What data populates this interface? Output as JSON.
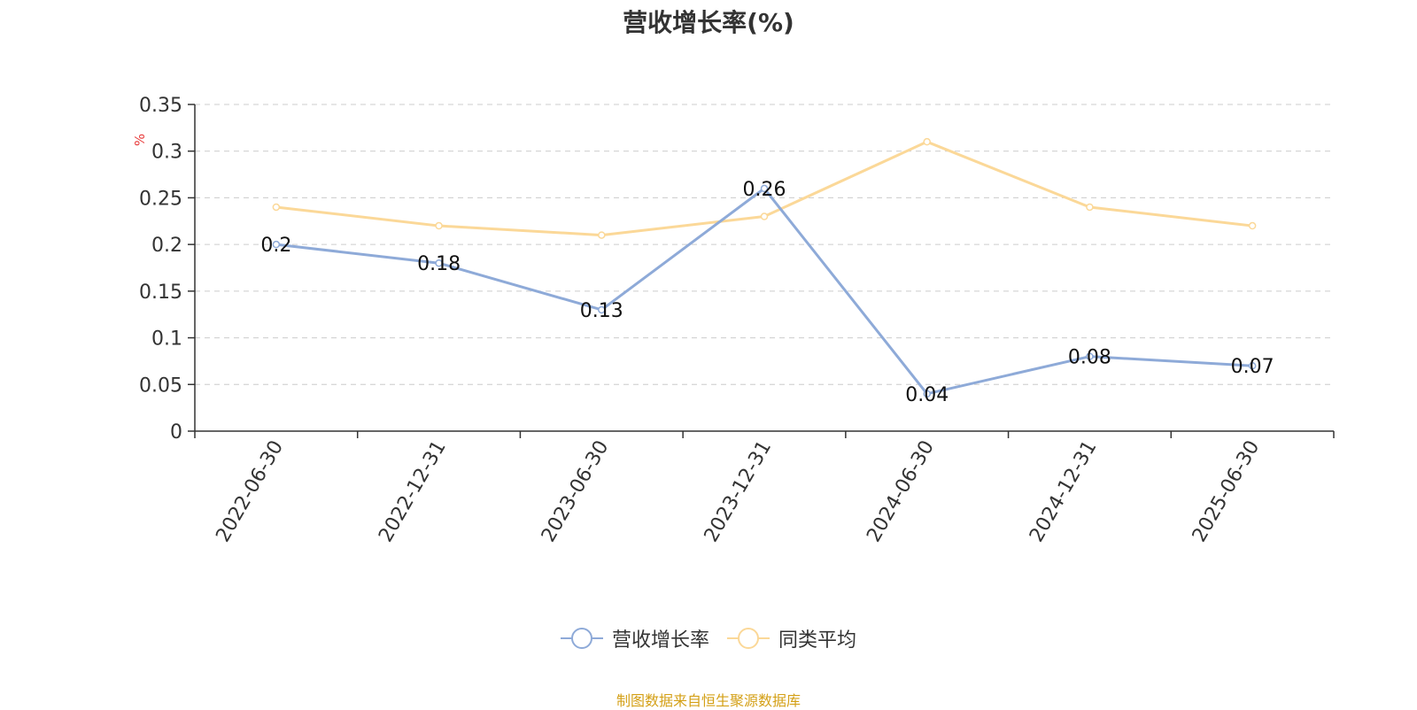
{
  "chart_data": {
    "type": "line",
    "title": "营收增长率(%)",
    "ylabel": "%",
    "xlabel": "",
    "categories": [
      "2022-06-30",
      "2022-12-31",
      "2023-06-30",
      "2023-12-31",
      "2024-06-30",
      "2024-12-31",
      "2025-06-30"
    ],
    "ylim": [
      0,
      0.35
    ],
    "yticks": [
      "0",
      "0.05",
      "0.1",
      "0.15",
      "0.2",
      "0.25",
      "0.3",
      "0.35"
    ],
    "grid": true,
    "legend_position": "bottom",
    "series": [
      {
        "name": "营收增长率",
        "color": "#8eaad8",
        "values": [
          0.2,
          0.18,
          0.13,
          0.26,
          0.04,
          0.08,
          0.07
        ],
        "labels": [
          "0.2",
          "0.18",
          "0.13",
          "0.26",
          "0.04",
          "0.08",
          "0.07"
        ]
      },
      {
        "name": "同类平均",
        "color": "#fbd898",
        "values": [
          0.24,
          0.22,
          0.21,
          0.23,
          0.31,
          0.24,
          0.22
        ]
      }
    ]
  },
  "source_text": "制图数据来自恒生聚源数据库",
  "colors": {
    "axis": "#333333",
    "grid": "#cccccc",
    "ylabel": "#e83a3a",
    "source": "#d4a017"
  }
}
